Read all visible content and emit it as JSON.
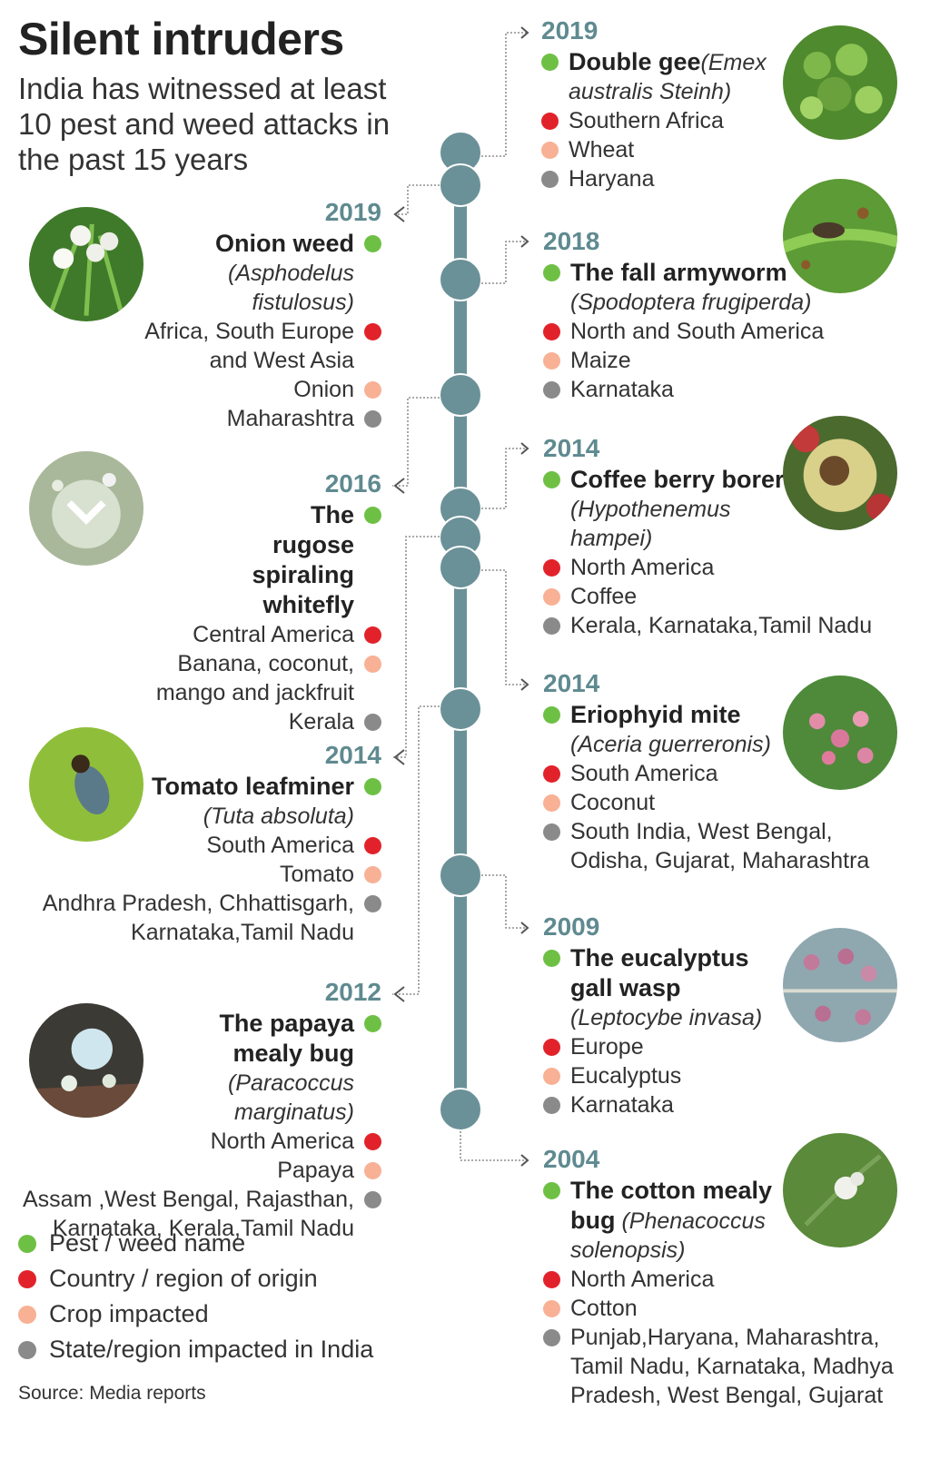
{
  "header": {
    "title": "Silent intruders",
    "subtitle": "India has witnessed at least 10 pest and weed attacks in the past 15 years"
  },
  "entries": [
    {
      "year": "2019",
      "name": "Double gee",
      "scientific": "(Emex australis Steinh)",
      "origin": "Southern  Africa",
      "crop": "Wheat",
      "state": "Haryana",
      "photo": "double-gee-photo"
    },
    {
      "year": "2019",
      "name": "Onion weed",
      "scientific": "(Asphodelus fistulosus)",
      "origin": "Africa, South Europe and West Asia",
      "crop": "Onion",
      "state": "Maharashtra",
      "photo": "onion-weed-photo"
    },
    {
      "year": "2018",
      "name": "The fall armyworm",
      "scientific": "(Spodoptera frugiperda)",
      "origin": "North and South America",
      "crop": "Maize",
      "state": "Karnataka",
      "photo": "fall-armyworm-photo"
    },
    {
      "year": "2016",
      "name": "The rugose spiraling whitefly",
      "scientific": "",
      "origin": "Central America",
      "crop": "Banana, coconut, mango and jackfruit",
      "state": "Kerala",
      "photo": "whitefly-photo"
    },
    {
      "year": "2014",
      "name": "Coffee berry borer",
      "scientific": "(Hypothenemus hampei)",
      "origin": "North America",
      "crop": "Coffee",
      "state": "Kerala, Karnataka,Tamil Nadu",
      "photo": "coffee-berry-photo"
    },
    {
      "year": "2014",
      "name": "Eriophyid mite",
      "scientific": "(Aceria guerreronis)",
      "origin": "South America",
      "crop": "Coconut",
      "state": "South India, West Bengal, Odisha, Gujarat, Maharashtra",
      "photo": "eriophyid-mite-photo"
    },
    {
      "year": "2014",
      "name": "Tomato leafminer",
      "scientific": "(Tuta absoluta)",
      "origin": "South America",
      "crop": "Tomato",
      "state": "Andhra Pradesh, Chhattisgarh, Karnataka,Tamil Nadu",
      "photo": "tomato-leafminer-photo"
    },
    {
      "year": "2012",
      "name": "The papaya mealy bug",
      "scientific": "(Paracoccus marginatus)",
      "origin": "North America",
      "crop": "Papaya",
      "state": "Assam ,West Bengal, Rajasthan, Karnataka, Kerala,Tamil Nadu",
      "photo": "papaya-mealybug-photo"
    },
    {
      "year": "2009",
      "name": "The eucalyptus gall wasp",
      "scientific": "(Leptocybe invasa)",
      "origin": "Europe",
      "crop": "Eucalyptus",
      "state": "Karnataka",
      "photo": "gall-wasp-photo"
    },
    {
      "year": "2004",
      "name": "The cotton mealy bug",
      "scientific": "(Phenacoccus solenopsis)",
      "origin": "North America",
      "crop": "Cotton",
      "state": "Punjab,Haryana, Maharashtra, Tamil Nadu, Karnataka, Madhya Pradesh, West Bengal, Gujarat",
      "photo": "cotton-mealybug-photo"
    }
  ],
  "legend": [
    {
      "label": "Pest / weed name",
      "color": "#6ec045"
    },
    {
      "label": "Country / region of origin",
      "color": "#e2222b"
    },
    {
      "label": "Crop impacted",
      "color": "#f8b195"
    },
    {
      "label": "State/region impacted in India",
      "color": "#8a8a8a"
    }
  ],
  "source": "Source: Media reports",
  "colors": {
    "timeline": "#6a9197",
    "year": "#5f8a90",
    "pest": "#6ec045",
    "origin": "#e2222b",
    "crop": "#f8b195",
    "state": "#8a8a8a"
  }
}
